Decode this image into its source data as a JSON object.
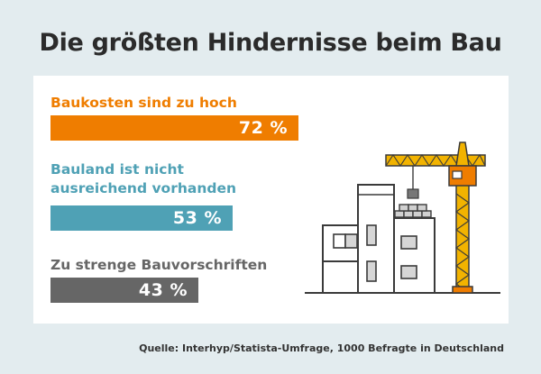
{
  "title": "Die größten Hindernisse beim Bau",
  "source": "Quelle: Interhyp/Statista-Umfrage, 1000 Befragte in Deutschland",
  "colors": {
    "orange": "#ef7d00",
    "teal": "#4fa1b5",
    "gray": "#666666",
    "background": "#e3ecef"
  },
  "illustration": {
    "name": "construction-site-crane-icon"
  },
  "chart_data": {
    "type": "bar",
    "orientation": "horizontal",
    "categories": [
      "Baukosten sind zu hoch",
      "Bauland ist nicht ausreichend vorhanden",
      "Zu strenge Bauvorschriften"
    ],
    "category_lines": [
      [
        "Baukosten sind zu hoch"
      ],
      [
        "Bauland ist nicht",
        "ausreichend vorhanden"
      ],
      [
        "Zu strenge Bauvorschriften"
      ]
    ],
    "values": [
      72,
      53,
      43
    ],
    "value_labels": [
      "72 %",
      "53 %",
      "43 %"
    ],
    "unit": "%",
    "bar_colors": [
      "#ef7d00",
      "#4fa1b5",
      "#666666"
    ],
    "title": "Die größten Hindernisse beim Bau",
    "xlabel": "",
    "ylabel": "",
    "xlim": [
      0,
      100
    ],
    "grid": false,
    "legend": "none"
  }
}
